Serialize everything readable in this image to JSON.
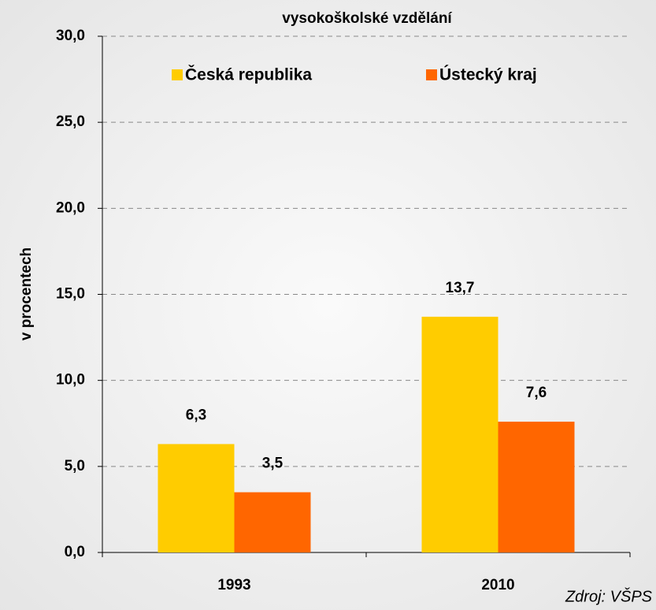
{
  "chart_data": {
    "type": "bar",
    "title": "vysokoškolské vzdělání",
    "y_label": "v procentech",
    "source": "Zdroj: VŠPS",
    "categories": [
      "1993",
      "2010"
    ],
    "series": [
      {
        "name": "Česká republika",
        "color": "#FFCC00",
        "values": [
          6.3,
          13.7
        ],
        "value_labels": [
          "6,3",
          "13,7"
        ]
      },
      {
        "name": "Ústecký kraj",
        "color": "#FF6600",
        "values": [
          3.5,
          7.6
        ],
        "value_labels": [
          "3,5",
          "7,6"
        ]
      }
    ],
    "ylim": [
      0,
      30
    ],
    "yticks": [
      {
        "value": 0,
        "label": "0,0"
      },
      {
        "value": 5,
        "label": "5,0"
      },
      {
        "value": 10,
        "label": "10,0"
      },
      {
        "value": 15,
        "label": "15,0"
      },
      {
        "value": 20,
        "label": "20,0"
      },
      {
        "value": 25,
        "label": "25,0"
      },
      {
        "value": 30,
        "label": "30,0"
      }
    ],
    "grid": true
  }
}
